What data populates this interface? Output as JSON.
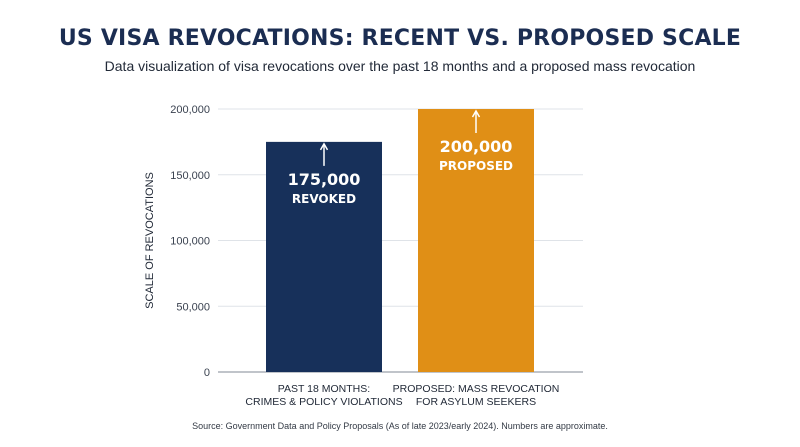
{
  "header": {
    "title": "US VISA REVOCATIONS: RECENT VS. PROPOSED SCALE",
    "subtitle": "Data visualization of visa revocations over the past 18 months and a proposed mass revocation"
  },
  "footer": {
    "source": "Source: Government Data and Policy Proposals (As of late 2023/early 2024). Numbers are approximate."
  },
  "chart_data": {
    "type": "bar",
    "title": "US VISA REVOCATIONS: RECENT VS. PROPOSED SCALE",
    "subtitle": "Data visualization of visa revocations over the past 18 months and a proposed mass revocation",
    "xlabel": "",
    "ylabel": "SCALE OF REVOCATIONS",
    "ylim": [
      0,
      200000
    ],
    "yticks": [
      0,
      50000,
      100000,
      150000,
      200000
    ],
    "ytick_labels": [
      "0",
      "50,000",
      "100,000",
      "150,000",
      "200,000"
    ],
    "grid": true,
    "categories": [
      [
        "PAST 18 MONTHS:",
        "CRIMES & POLICY VIOLATIONS"
      ],
      [
        "PROPOSED: MASS REVOCATION",
        "FOR ASYLUM SEEKERS"
      ]
    ],
    "values": [
      175000,
      200000
    ],
    "data_labels": [
      [
        "175,000",
        "REVOKED"
      ],
      [
        "200,000",
        "PROPOSED"
      ]
    ],
    "colors": [
      "#17305a",
      "#e08f16"
    ],
    "grid_color": "#dfe3e8",
    "axis_color": "#9aa1aa",
    "text_color": "#222a38"
  }
}
